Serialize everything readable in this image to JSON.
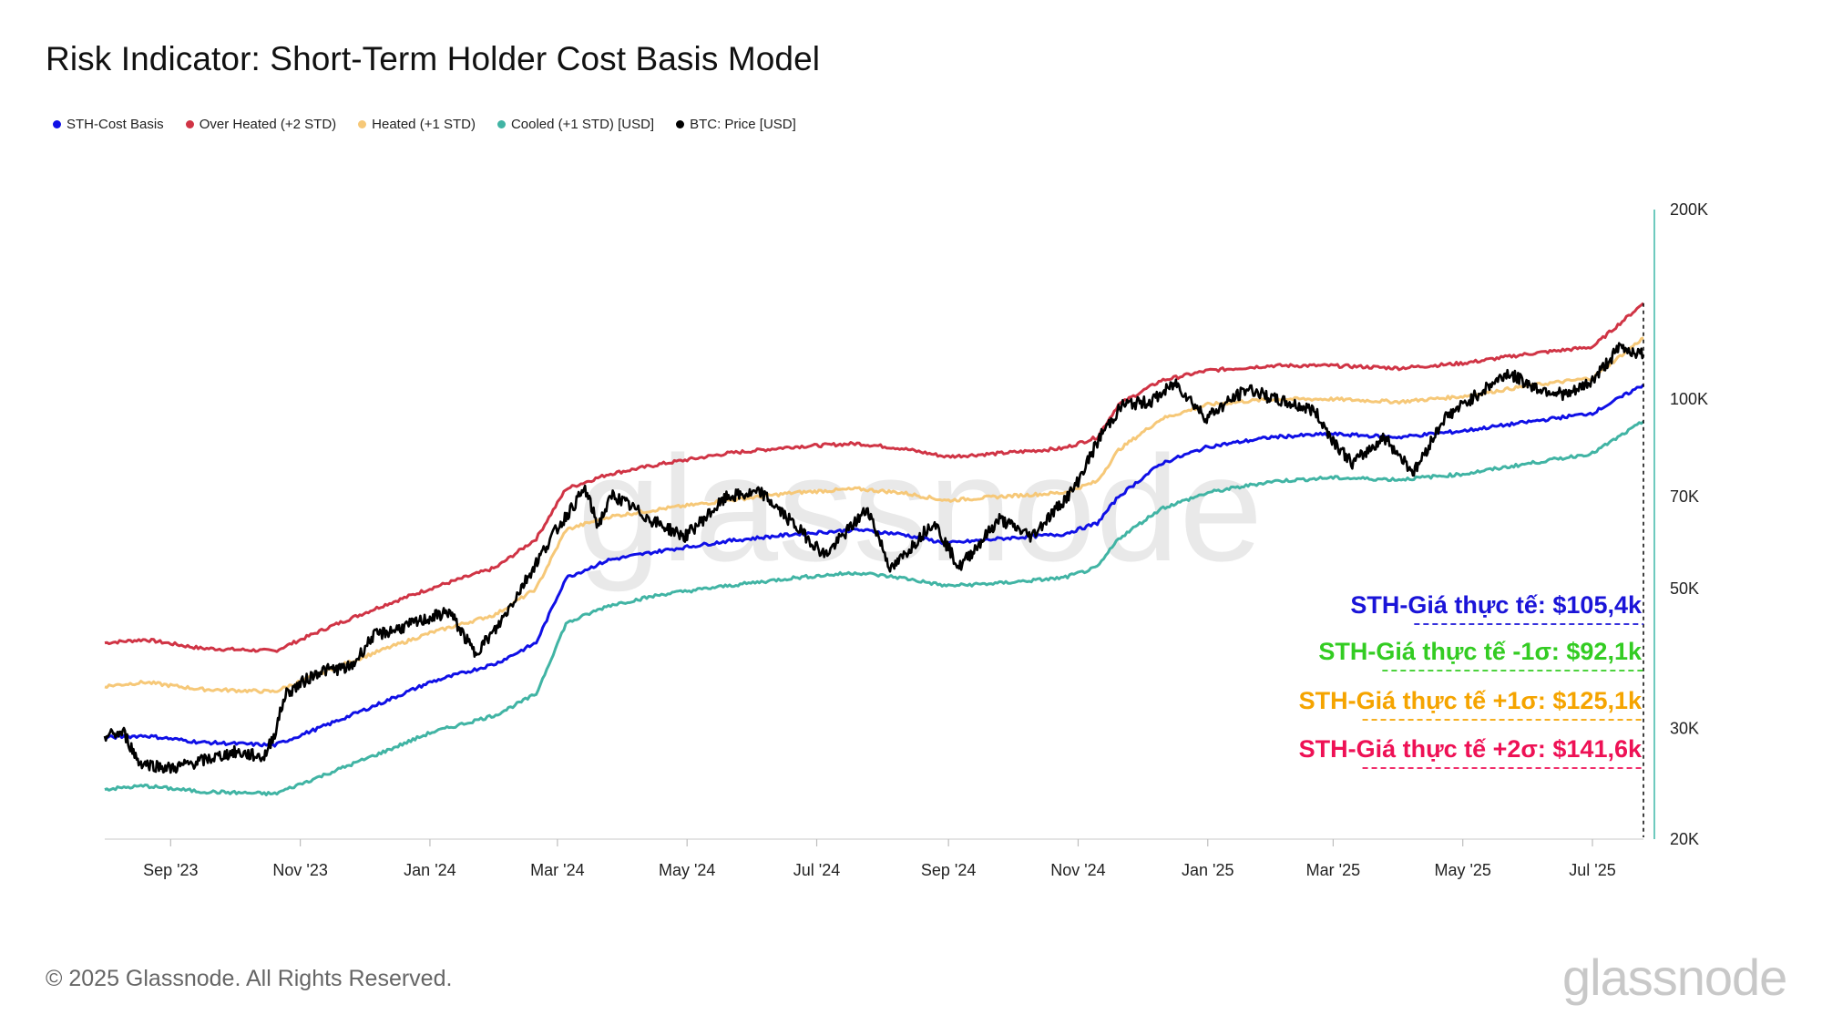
{
  "title": "Risk Indicator: Short-Term Holder Cost Basis Model",
  "footer": "© 2025 Glassnode. All Rights Reserved.",
  "brand": "glassnode",
  "watermark": "glassnode",
  "legend": [
    {
      "label": "STH-Cost Basis",
      "color": "#1010e6"
    },
    {
      "label": "Over Heated (+2 STD)",
      "color": "#d03445"
    },
    {
      "label": "Heated (+1 STD)",
      "color": "#f6c878"
    },
    {
      "label": "Cooled (+1 STD) [USD]",
      "color": "#41b4a4"
    },
    {
      "label": "BTC: Price [USD]",
      "color": "#000000"
    }
  ],
  "annotations": [
    {
      "text": "STH-Giá thực tế: $105,4k",
      "color": "#1a14d8",
      "value": 105400
    },
    {
      "text": "STH-Giá thực tế -1σ: $92,1k",
      "color": "#33cc22",
      "value": 92100
    },
    {
      "text": "STH-Giá thực tế +1σ: $125,1k",
      "color": "#f5a400",
      "value": 125100
    },
    {
      "text": "STH-Giá thực tế +2σ: $141,6k",
      "color": "#ee1155",
      "value": 141600
    }
  ],
  "chart_data": {
    "type": "line",
    "y_scale": "log",
    "ylim": [
      20000,
      200000
    ],
    "y_ticks": [
      {
        "value": 20000,
        "label": "20K"
      },
      {
        "value": 30000,
        "label": "30K"
      },
      {
        "value": 50000,
        "label": "50K"
      },
      {
        "value": 70000,
        "label": "70K"
      },
      {
        "value": 100000,
        "label": "100K"
      },
      {
        "value": 200000,
        "label": "200K"
      }
    ],
    "x_range": [
      "2023-08-01",
      "2025-07-25"
    ],
    "x_ticks": [
      {
        "date": "2023-09-01",
        "label": "Sep '23"
      },
      {
        "date": "2023-11-01",
        "label": "Nov '23"
      },
      {
        "date": "2024-01-01",
        "label": "Jan '24"
      },
      {
        "date": "2024-03-01",
        "label": "Mar '24"
      },
      {
        "date": "2024-05-01",
        "label": "May '24"
      },
      {
        "date": "2024-07-01",
        "label": "Jul '24"
      },
      {
        "date": "2024-09-01",
        "label": "Sep '24"
      },
      {
        "date": "2024-11-01",
        "label": "Nov '24"
      },
      {
        "date": "2025-01-01",
        "label": "Jan '25"
      },
      {
        "date": "2025-03-01",
        "label": "Mar '25"
      },
      {
        "date": "2025-05-01",
        "label": "May '25"
      },
      {
        "date": "2025-07-01",
        "label": "Jul '25"
      }
    ],
    "series": [
      {
        "name": "Over Heated (+2 STD)",
        "color": "#d03445",
        "points": [
          [
            "2023-08-01",
            41000
          ],
          [
            "2023-08-20",
            41500
          ],
          [
            "2023-09-15",
            40200
          ],
          [
            "2023-10-20",
            39800
          ],
          [
            "2023-11-15",
            43500
          ],
          [
            "2023-12-10",
            47000
          ],
          [
            "2024-01-01",
            50000
          ],
          [
            "2024-02-01",
            54000
          ],
          [
            "2024-02-20",
            60000
          ],
          [
            "2024-03-05",
            72000
          ],
          [
            "2024-03-25",
            76000
          ],
          [
            "2024-04-20",
            79000
          ],
          [
            "2024-05-20",
            82000
          ],
          [
            "2024-06-20",
            84000
          ],
          [
            "2024-07-20",
            85000
          ],
          [
            "2024-08-10",
            83500
          ],
          [
            "2024-08-31",
            81000
          ],
          [
            "2024-09-25",
            82000
          ],
          [
            "2024-10-25",
            83500
          ],
          [
            "2024-11-10",
            87000
          ],
          [
            "2024-11-20",
            98000
          ],
          [
            "2024-12-10",
            107000
          ],
          [
            "2025-01-01",
            111000
          ],
          [
            "2025-01-31",
            113000
          ],
          [
            "2025-02-28",
            113000
          ],
          [
            "2025-04-01",
            112000
          ],
          [
            "2025-05-01",
            114000
          ],
          [
            "2025-06-01",
            118000
          ],
          [
            "2025-07-01",
            121000
          ],
          [
            "2025-07-25",
            142000
          ]
        ]
      },
      {
        "name": "Heated (+1 STD)",
        "color": "#f6c878",
        "points": [
          [
            "2023-08-01",
            35000
          ],
          [
            "2023-08-20",
            35500
          ],
          [
            "2023-09-15",
            34600
          ],
          [
            "2023-10-20",
            34300
          ],
          [
            "2023-11-15",
            37200
          ],
          [
            "2023-12-10",
            40000
          ],
          [
            "2024-01-01",
            42500
          ],
          [
            "2024-02-01",
            45500
          ],
          [
            "2024-02-20",
            50000
          ],
          [
            "2024-03-05",
            62000
          ],
          [
            "2024-03-25",
            65000
          ],
          [
            "2024-04-20",
            67000
          ],
          [
            "2024-05-20",
            69000
          ],
          [
            "2024-06-20",
            71000
          ],
          [
            "2024-07-20",
            72000
          ],
          [
            "2024-08-10",
            71000
          ],
          [
            "2024-08-31",
            69000
          ],
          [
            "2024-09-25",
            70000
          ],
          [
            "2024-10-25",
            71000
          ],
          [
            "2024-11-10",
            74000
          ],
          [
            "2024-11-20",
            83000
          ],
          [
            "2024-12-10",
            93000
          ],
          [
            "2025-01-01",
            98000
          ],
          [
            "2025-01-31",
            100000
          ],
          [
            "2025-02-28",
            100000
          ],
          [
            "2025-04-01",
            99000
          ],
          [
            "2025-05-01",
            101000
          ],
          [
            "2025-06-01",
            105000
          ],
          [
            "2025-07-01",
            108000
          ],
          [
            "2025-07-25",
            125100
          ]
        ]
      },
      {
        "name": "STH-Cost Basis",
        "color": "#1010e6",
        "points": [
          [
            "2023-08-01",
            29000
          ],
          [
            "2023-08-20",
            29200
          ],
          [
            "2023-09-15",
            28500
          ],
          [
            "2023-10-20",
            28200
          ],
          [
            "2023-11-15",
            30500
          ],
          [
            "2023-12-10",
            33000
          ],
          [
            "2024-01-01",
            35500
          ],
          [
            "2024-02-01",
            38000
          ],
          [
            "2024-02-20",
            41000
          ],
          [
            "2024-03-05",
            52000
          ],
          [
            "2024-03-25",
            55500
          ],
          [
            "2024-04-20",
            57500
          ],
          [
            "2024-05-20",
            59500
          ],
          [
            "2024-06-20",
            61000
          ],
          [
            "2024-07-20",
            62000
          ],
          [
            "2024-08-10",
            61000
          ],
          [
            "2024-08-31",
            59000
          ],
          [
            "2024-09-25",
            60000
          ],
          [
            "2024-10-25",
            61000
          ],
          [
            "2024-11-10",
            63500
          ],
          [
            "2024-11-20",
            70000
          ],
          [
            "2024-12-10",
            79000
          ],
          [
            "2025-01-01",
            84000
          ],
          [
            "2025-01-31",
            87000
          ],
          [
            "2025-02-28",
            88000
          ],
          [
            "2025-04-01",
            87000
          ],
          [
            "2025-05-01",
            89000
          ],
          [
            "2025-06-01",
            92000
          ],
          [
            "2025-07-01",
            95000
          ],
          [
            "2025-07-25",
            105400
          ]
        ]
      },
      {
        "name": "Cooled (+1 STD) [USD]",
        "color": "#41b4a4",
        "points": [
          [
            "2023-08-01",
            24000
          ],
          [
            "2023-08-20",
            24300
          ],
          [
            "2023-09-15",
            23800
          ],
          [
            "2023-10-20",
            23600
          ],
          [
            "2023-11-15",
            25500
          ],
          [
            "2023-12-10",
            27500
          ],
          [
            "2024-01-01",
            29500
          ],
          [
            "2024-02-01",
            31500
          ],
          [
            "2024-02-20",
            34000
          ],
          [
            "2024-03-05",
            44000
          ],
          [
            "2024-03-25",
            47000
          ],
          [
            "2024-04-20",
            49000
          ],
          [
            "2024-05-20",
            50500
          ],
          [
            "2024-06-20",
            52000
          ],
          [
            "2024-07-20",
            53000
          ],
          [
            "2024-08-10",
            52000
          ],
          [
            "2024-08-31",
            50500
          ],
          [
            "2024-09-25",
            51000
          ],
          [
            "2024-10-25",
            52000
          ],
          [
            "2024-11-10",
            54000
          ],
          [
            "2024-11-20",
            60000
          ],
          [
            "2024-12-10",
            67000
          ],
          [
            "2025-01-01",
            71000
          ],
          [
            "2025-01-31",
            74000
          ],
          [
            "2025-02-28",
            75000
          ],
          [
            "2025-04-01",
            74500
          ],
          [
            "2025-05-01",
            76000
          ],
          [
            "2025-06-01",
            79000
          ],
          [
            "2025-07-01",
            82000
          ],
          [
            "2025-07-25",
            92100
          ]
        ]
      },
      {
        "name": "BTC: Price [USD]",
        "color": "#000000",
        "points": [
          [
            "2023-08-01",
            29200
          ],
          [
            "2023-08-10",
            29500
          ],
          [
            "2023-08-17",
            26500
          ],
          [
            "2023-09-01",
            25900
          ],
          [
            "2023-09-15",
            26600
          ],
          [
            "2023-10-01",
            27500
          ],
          [
            "2023-10-15",
            27000
          ],
          [
            "2023-10-20",
            29500
          ],
          [
            "2023-10-25",
            34000
          ],
          [
            "2023-11-10",
            37000
          ],
          [
            "2023-11-25",
            37500
          ],
          [
            "2023-12-05",
            42000
          ],
          [
            "2023-12-20",
            43500
          ],
          [
            "2024-01-10",
            46000
          ],
          [
            "2024-01-22",
            39500
          ],
          [
            "2024-02-01",
            43000
          ],
          [
            "2024-02-15",
            51500
          ],
          [
            "2024-02-28",
            61000
          ],
          [
            "2024-03-14",
            72000
          ],
          [
            "2024-03-20",
            63000
          ],
          [
            "2024-03-27",
            70500
          ],
          [
            "2024-04-15",
            64000
          ],
          [
            "2024-04-30",
            60500
          ],
          [
            "2024-05-20",
            70000
          ],
          [
            "2024-06-05",
            71000
          ],
          [
            "2024-06-25",
            61000
          ],
          [
            "2024-07-05",
            56500
          ],
          [
            "2024-07-25",
            67000
          ],
          [
            "2024-08-05",
            53500
          ],
          [
            "2024-08-15",
            58500
          ],
          [
            "2024-08-25",
            64000
          ],
          [
            "2024-09-06",
            54000
          ],
          [
            "2024-09-25",
            64500
          ],
          [
            "2024-10-10",
            60500
          ],
          [
            "2024-10-30",
            72000
          ],
          [
            "2024-11-12",
            88000
          ],
          [
            "2024-11-22",
            98000
          ],
          [
            "2024-12-05",
            99000
          ],
          [
            "2024-12-17",
            106000
          ],
          [
            "2024-12-31",
            93500
          ],
          [
            "2025-01-20",
            104000
          ],
          [
            "2025-02-01",
            100000
          ],
          [
            "2025-02-20",
            96000
          ],
          [
            "2025-03-01",
            86000
          ],
          [
            "2025-03-10",
            79000
          ],
          [
            "2025-03-25",
            87000
          ],
          [
            "2025-04-08",
            76500
          ],
          [
            "2025-04-22",
            93000
          ],
          [
            "2025-05-10",
            103000
          ],
          [
            "2025-05-22",
            110000
          ],
          [
            "2025-06-05",
            104000
          ],
          [
            "2025-06-20",
            101500
          ],
          [
            "2025-07-01",
            107000
          ],
          [
            "2025-07-14",
            121000
          ],
          [
            "2025-07-25",
            117500
          ]
        ]
      }
    ]
  }
}
